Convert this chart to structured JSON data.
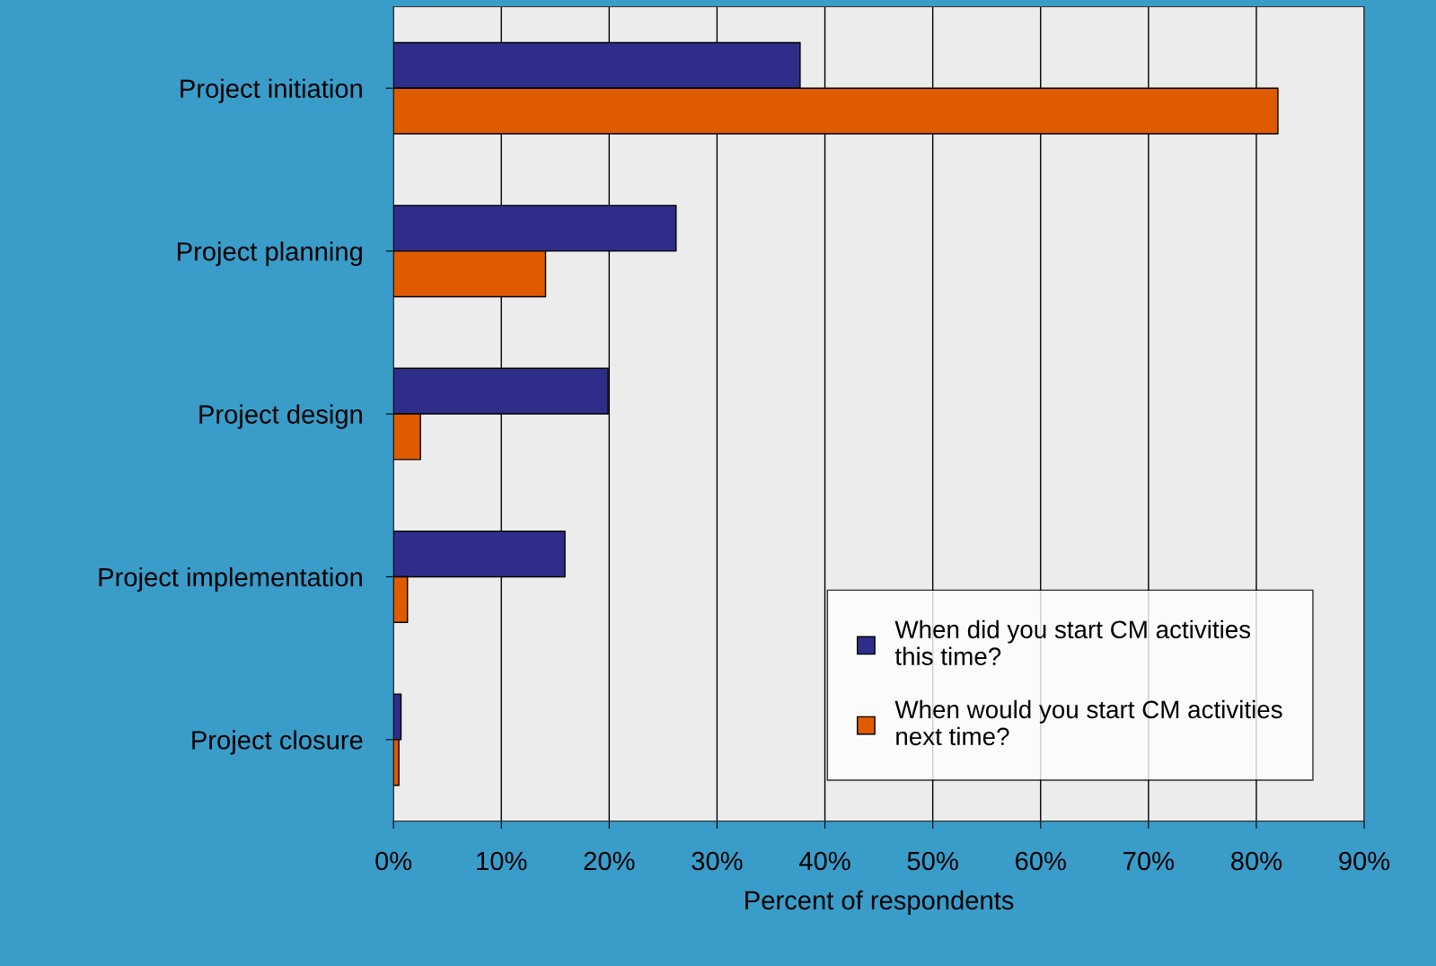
{
  "chart_data": {
    "type": "bar",
    "orientation": "horizontal",
    "xlabel": "Percent of respondents",
    "categories": [
      "Project initiation",
      "Project planning",
      "Project design",
      "Project implementation",
      "Project closure"
    ],
    "series": [
      {
        "name": "When did you start CM activities this time?",
        "color": "#2e2e8a",
        "values": [
          37.7,
          26.2,
          19.9,
          15.9,
          0.7
        ]
      },
      {
        "name": "When would you start CM activities next time?",
        "color": "#e05a00",
        "values": [
          82,
          14.1,
          2.5,
          1.3,
          0.5
        ]
      }
    ],
    "xlim": [
      0,
      90
    ],
    "xticks": [
      {
        "value": 0,
        "label": "0%"
      },
      {
        "value": 10,
        "label": "10%"
      },
      {
        "value": 20,
        "label": "20%"
      },
      {
        "value": 30,
        "label": "30%"
      },
      {
        "value": 40,
        "label": "40%"
      },
      {
        "value": 50,
        "label": "50%"
      },
      {
        "value": 60,
        "label": "60%"
      },
      {
        "value": 70,
        "label": "70%"
      },
      {
        "value": 80,
        "label": "80%"
      },
      {
        "value": 90,
        "label": "90%"
      }
    ],
    "grid": "x",
    "legend": "bottom right"
  }
}
